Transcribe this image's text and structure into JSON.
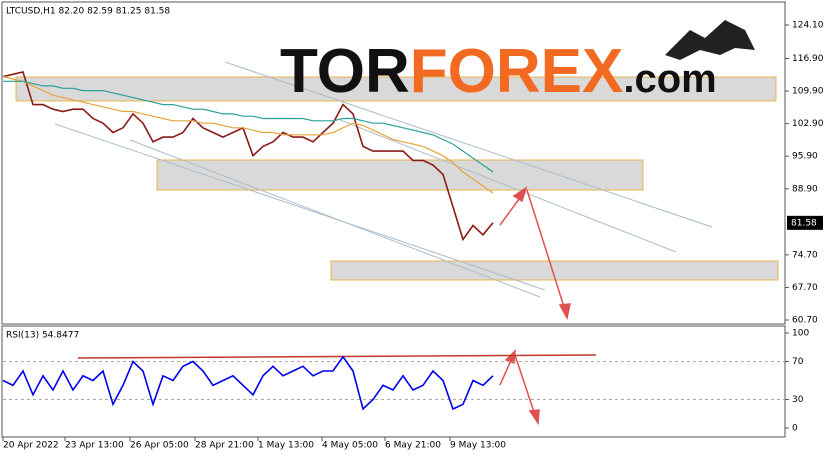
{
  "logo": {
    "part1": "TOR",
    "part2": "FOREX",
    "part3": ".com"
  },
  "chart_data": [
    {
      "type": "line",
      "title": "LTCUSD,H1  82.20 82.59 81.25 81.58",
      "xlim": [
        0,
        78.2
      ],
      "ylim": [
        59.84,
        129.04
      ],
      "yticks": [
        {
          "value": 124.1,
          "label": "124.10"
        },
        {
          "value": 116.9,
          "label": "116.90"
        },
        {
          "value": 109.9,
          "label": "109.90"
        },
        {
          "value": 102.9,
          "label": "102.90"
        },
        {
          "value": 95.9,
          "label": "95.90"
        },
        {
          "value": 88.9,
          "label": "88.90"
        },
        {
          "value": 74.7,
          "label": "74.70"
        },
        {
          "value": 67.7,
          "label": "67.70"
        },
        {
          "value": 60.7,
          "label": "60.70"
        }
      ],
      "last_price": 81.58,
      "series": [
        {
          "color": "#8b1a1a",
          "values": [
            113,
            113.5,
            114,
            107,
            107,
            106,
            105.5,
            106,
            106,
            104,
            103,
            101,
            102,
            105,
            103,
            99,
            100,
            100,
            101,
            104,
            102,
            101,
            100,
            101,
            102,
            96,
            98,
            99,
            101,
            100,
            100,
            99,
            101,
            103,
            107,
            105,
            98,
            97,
            97,
            97,
            97,
            95,
            95,
            94,
            92,
            85,
            78,
            81,
            79,
            81.6
          ]
        },
        {
          "color": "#e8a33c",
          "values": [
            113,
            112.5,
            112,
            111,
            110,
            109,
            108.5,
            108,
            107.5,
            107,
            106.5,
            106,
            105.5,
            105.5,
            105,
            104.5,
            104,
            103.5,
            103.5,
            103.5,
            103,
            103,
            102.5,
            102,
            102,
            101.5,
            101,
            101,
            100.5,
            100.5,
            100.5,
            100.5,
            100.5,
            101,
            102,
            103,
            102.5,
            101.5,
            100.5,
            99.5,
            99,
            98.5,
            98,
            97,
            96,
            94.5,
            92.5,
            91,
            89.5,
            88
          ]
        },
        {
          "color": "#2aa198",
          "values": [
            112,
            112,
            112,
            111.5,
            111,
            111,
            110.5,
            110.5,
            110,
            110,
            110,
            109.5,
            109,
            108.5,
            108,
            107.5,
            107,
            107,
            106.5,
            106,
            106,
            105.5,
            105,
            105,
            104.5,
            104.5,
            104,
            104,
            104,
            104,
            104,
            103.5,
            103.5,
            103.5,
            104,
            104,
            103.5,
            103,
            103,
            102.5,
            102,
            101.5,
            101,
            100.5,
            99.5,
            98.5,
            97,
            95.5,
            94,
            92.5
          ]
        }
      ]
    },
    {
      "type": "line",
      "title": "RSI(13) 54.8477",
      "xlim": [
        0,
        78.2
      ],
      "ylim": [
        0,
        100
      ],
      "yticks": [
        100,
        70,
        30,
        0
      ],
      "xticks": [
        {
          "value": 0,
          "label": "20 Apr 2022"
        },
        {
          "value": 6.2,
          "label": "23 Apr 13:00"
        },
        {
          "value": 12.7,
          "label": "26 Apr 05:00"
        },
        {
          "value": 19.2,
          "label": "28 Apr 21:00"
        },
        {
          "value": 25.5,
          "label": "1 May 13:00"
        },
        {
          "value": 31.9,
          "label": "4 May 05:00"
        },
        {
          "value": 38.2,
          "label": "6 May 21:00"
        },
        {
          "value": 44.7,
          "label": "9 May 13:00"
        }
      ],
      "series": [
        {
          "color": "#0000ee",
          "values": [
            50,
            45,
            60,
            35,
            55,
            40,
            60,
            40,
            55,
            50,
            60,
            25,
            45,
            70,
            60,
            25,
            55,
            50,
            65,
            70,
            60,
            45,
            50,
            55,
            45,
            35,
            55,
            65,
            55,
            60,
            65,
            55,
            60,
            60,
            75,
            60,
            20,
            30,
            45,
            40,
            55,
            40,
            45,
            60,
            50,
            20,
            25,
            50,
            45,
            55
          ]
        }
      ]
    }
  ]
}
